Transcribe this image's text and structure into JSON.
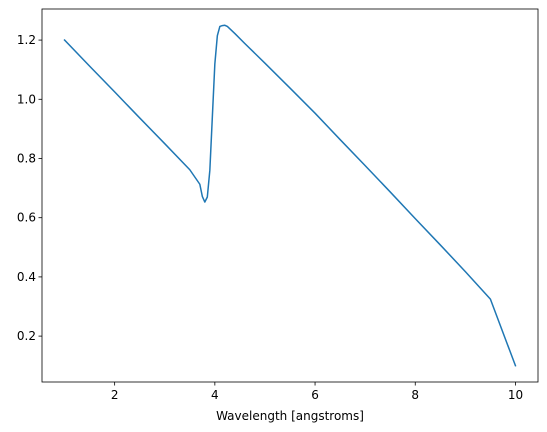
{
  "chart_data": {
    "type": "line",
    "title": "",
    "xlabel": "Wavelength [angstroms]",
    "ylabel": "",
    "xlim": [
      0.55,
      10.45
    ],
    "ylim": [
      0.045,
      1.305
    ],
    "xticks": [
      2,
      4,
      6,
      8,
      10
    ],
    "yticks": [
      0.2,
      0.4,
      0.6,
      0.8,
      1.0,
      1.2
    ],
    "xtick_labels": [
      "2",
      "4",
      "6",
      "8",
      "10"
    ],
    "ytick_labels": [
      "0.2",
      "0.4",
      "0.6",
      "0.8",
      "1.0",
      "1.2"
    ],
    "grid": false,
    "legend": "none",
    "series": [
      {
        "color": "#1f77b4",
        "x": [
          1.0,
          1.5,
          2.0,
          2.5,
          3.0,
          3.5,
          3.7,
          3.75,
          3.8,
          3.85,
          3.9,
          3.95,
          4.0,
          4.05,
          4.1,
          4.15,
          4.2,
          4.25,
          4.3,
          4.4,
          4.6,
          5.0,
          5.5,
          6.0,
          6.5,
          7.0,
          7.5,
          8.0,
          8.5,
          9.0,
          9.5,
          10.0
        ],
        "y": [
          1.2,
          1.112,
          1.025,
          0.937,
          0.85,
          0.762,
          0.713,
          0.672,
          0.653,
          0.67,
          0.76,
          0.94,
          1.12,
          1.215,
          1.246,
          1.249,
          1.25,
          1.246,
          1.238,
          1.222,
          1.188,
          1.122,
          1.038,
          0.953,
          0.864,
          0.776,
          0.687,
          0.597,
          0.508,
          0.418,
          0.325,
          0.1
        ]
      }
    ]
  }
}
